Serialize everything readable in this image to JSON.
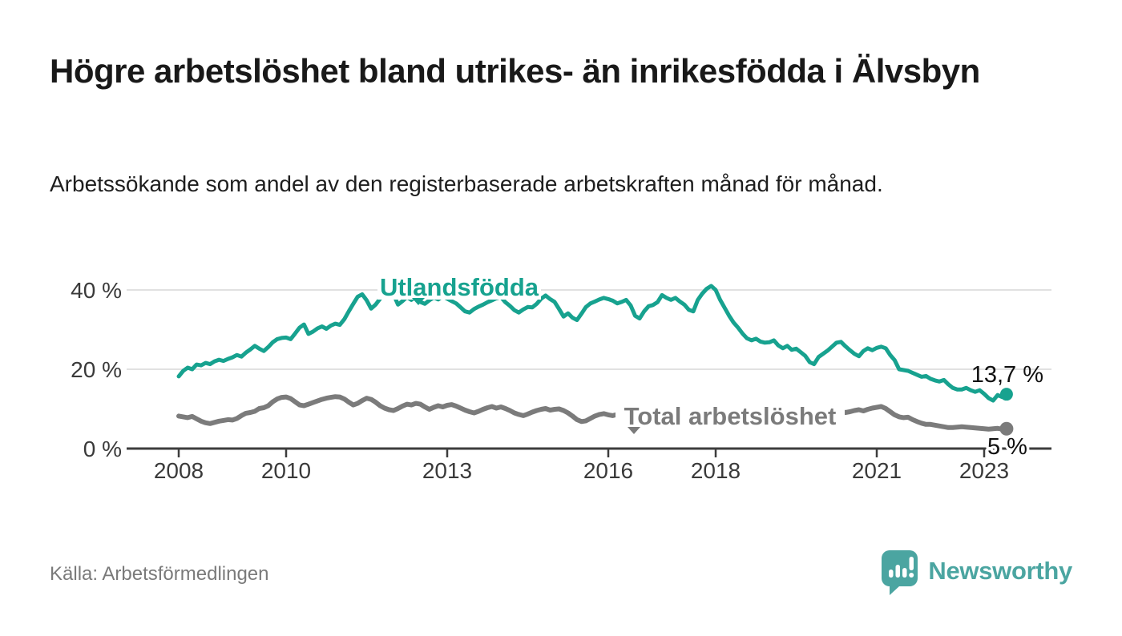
{
  "header": {
    "title": "Högre arbetslöshet bland utrikes- än inrikesfödda i Älvsbyn",
    "subtitle": "Arbetssökande som andel av den registerbaserade arbetskraften månad för månad."
  },
  "footer": {
    "source": "Källa: Arbetsförmedlingen",
    "brand": "Newsworthy"
  },
  "colors": {
    "teal": "#17a28f",
    "gray": "#7b7b7b",
    "logo_teal": "#4ba5a1",
    "axis": "#3d3d3d",
    "grid": "#e1e1e1",
    "value_label": "#111111",
    "tick_label": "#3a3a3a"
  },
  "chart_data": {
    "type": "line",
    "title": "",
    "xlabel": "",
    "ylabel": "",
    "x_start_year": 2008,
    "x_step_months": 1,
    "x_end": "2023-06",
    "ylim": [
      0,
      44
    ],
    "grid": "horizontal",
    "legend_position": "inline-labels-on-lines",
    "yticks": [
      {
        "value": 0,
        "label": "0 %"
      },
      {
        "value": 20,
        "label": "20 %"
      },
      {
        "value": 40,
        "label": "40 %"
      }
    ],
    "xticks": [
      {
        "value": 2008,
        "label": "2008"
      },
      {
        "value": 2010,
        "label": "2010"
      },
      {
        "value": 2013,
        "label": "2013"
      },
      {
        "value": 2016,
        "label": "2016"
      },
      {
        "value": 2018,
        "label": "2018"
      },
      {
        "value": 2021,
        "label": "2021"
      },
      {
        "value": 2023,
        "label": "2023"
      }
    ],
    "series": [
      {
        "name": "Utlandsfödda",
        "color": "#17a28f",
        "end_label": "13,7 %",
        "end_value": 13.7,
        "values": [
          18.2,
          19.6,
          20.4,
          20.0,
          21.2,
          21.0,
          21.6,
          21.3,
          22.0,
          22.4,
          22.1,
          22.6,
          23.0,
          23.6,
          23.2,
          24.2,
          25.0,
          25.9,
          25.2,
          24.6,
          25.6,
          26.8,
          27.6,
          27.9,
          28.0,
          27.6,
          29.0,
          30.5,
          31.3,
          28.9,
          29.5,
          30.3,
          30.8,
          30.2,
          31.0,
          31.5,
          31.2,
          32.6,
          34.6,
          36.5,
          38.3,
          38.9,
          37.4,
          35.3,
          36.3,
          37.8,
          39.4,
          40.0,
          38.9,
          36.3,
          37.2,
          38.2,
          37.5,
          38.3,
          37.0,
          36.5,
          37.4,
          38.1,
          37.6,
          38.4,
          37.8,
          37.2,
          36.6,
          35.6,
          34.6,
          34.3,
          35.2,
          35.8,
          36.3,
          36.9,
          37.4,
          37.9,
          38.2,
          36.9,
          36.0,
          34.9,
          34.3,
          35.1,
          35.7,
          35.6,
          36.5,
          37.8,
          38.6,
          37.7,
          37.0,
          35.2,
          33.3,
          34.1,
          33.0,
          32.4,
          34.0,
          35.7,
          36.6,
          37.1,
          37.6,
          38.0,
          37.7,
          37.3,
          36.6,
          37.0,
          37.5,
          36.1,
          33.5,
          32.8,
          34.6,
          35.9,
          36.2,
          36.9,
          38.7,
          38.0,
          37.5,
          38.0,
          37.1,
          36.3,
          35.0,
          34.6,
          37.5,
          39.1,
          40.3,
          41.0,
          40.0,
          37.5,
          35.5,
          33.5,
          31.8,
          30.5,
          29.0,
          27.8,
          27.3,
          27.7,
          27.0,
          26.7,
          26.8,
          27.3,
          26.0,
          25.3,
          25.9,
          24.9,
          25.2,
          24.3,
          23.4,
          21.8,
          21.3,
          23.1,
          23.9,
          24.7,
          25.7,
          26.7,
          26.9,
          25.8,
          24.8,
          23.9,
          23.3,
          24.6,
          25.3,
          24.8,
          25.4,
          25.7,
          25.3,
          23.6,
          22.3,
          20.0,
          19.8,
          19.6,
          19.1,
          18.6,
          18.1,
          18.3,
          17.6,
          17.2,
          16.9,
          17.3,
          16.2,
          15.3,
          14.9,
          14.9,
          15.3,
          14.7,
          14.3,
          14.7,
          13.8,
          12.7,
          12.1,
          13.5,
          13.0,
          13.7
        ]
      },
      {
        "name": "Total arbetslöshet",
        "color": "#7b7b7b",
        "end_label": "5 %",
        "end_value": 5.0,
        "values": [
          8.2,
          8.0,
          7.8,
          8.1,
          7.5,
          6.9,
          6.5,
          6.3,
          6.6,
          6.9,
          7.1,
          7.3,
          7.2,
          7.6,
          8.3,
          8.9,
          9.1,
          9.4,
          10.1,
          10.3,
          10.8,
          11.8,
          12.5,
          12.9,
          13.0,
          12.6,
          11.8,
          11.0,
          10.8,
          11.2,
          11.6,
          12.0,
          12.4,
          12.7,
          12.9,
          13.1,
          13.0,
          12.5,
          11.7,
          11.0,
          11.4,
          12.1,
          12.7,
          12.4,
          11.7,
          10.8,
          10.2,
          9.8,
          9.6,
          10.1,
          10.7,
          11.2,
          11.0,
          11.4,
          11.2,
          10.5,
          9.9,
          10.4,
          10.8,
          10.5,
          10.9,
          11.1,
          10.7,
          10.2,
          9.7,
          9.3,
          9.0,
          9.4,
          9.9,
          10.3,
          10.6,
          10.2,
          10.5,
          10.1,
          9.6,
          9.0,
          8.6,
          8.3,
          8.7,
          9.2,
          9.6,
          9.9,
          10.1,
          9.7,
          9.9,
          10.0,
          9.6,
          9.0,
          8.2,
          7.3,
          6.8,
          7.0,
          7.6,
          8.2,
          8.6,
          8.8,
          8.5,
          8.3,
          8.6,
          8.8,
          8.5,
          8.7,
          8.4,
          8.1,
          8.3,
          8.6,
          8.4,
          8.2,
          8.0,
          7.8,
          7.6,
          7.8,
          8.1,
          8.3,
          8.0,
          7.7,
          7.5,
          7.7,
          7.9,
          7.6,
          7.4,
          7.2,
          7.0,
          7.2,
          7.4,
          7.6,
          7.4,
          7.1,
          6.9,
          7.1,
          7.3,
          7.5,
          7.3,
          7.1,
          7.0,
          7.2,
          7.4,
          7.3,
          7.1,
          7.0,
          7.2,
          7.4,
          7.7,
          8.0,
          8.3,
          8.7,
          9.2,
          9.6,
          9.4,
          9.1,
          9.3,
          9.6,
          9.8,
          9.5,
          9.9,
          10.2,
          10.4,
          10.6,
          10.1,
          9.3,
          8.5,
          8.0,
          7.8,
          7.9,
          7.3,
          6.8,
          6.4,
          6.1,
          6.1,
          5.9,
          5.7,
          5.5,
          5.3,
          5.3,
          5.4,
          5.5,
          5.4,
          5.3,
          5.2,
          5.1,
          5.0,
          4.9,
          5.0,
          5.1,
          4.9,
          5.0
        ]
      }
    ]
  }
}
